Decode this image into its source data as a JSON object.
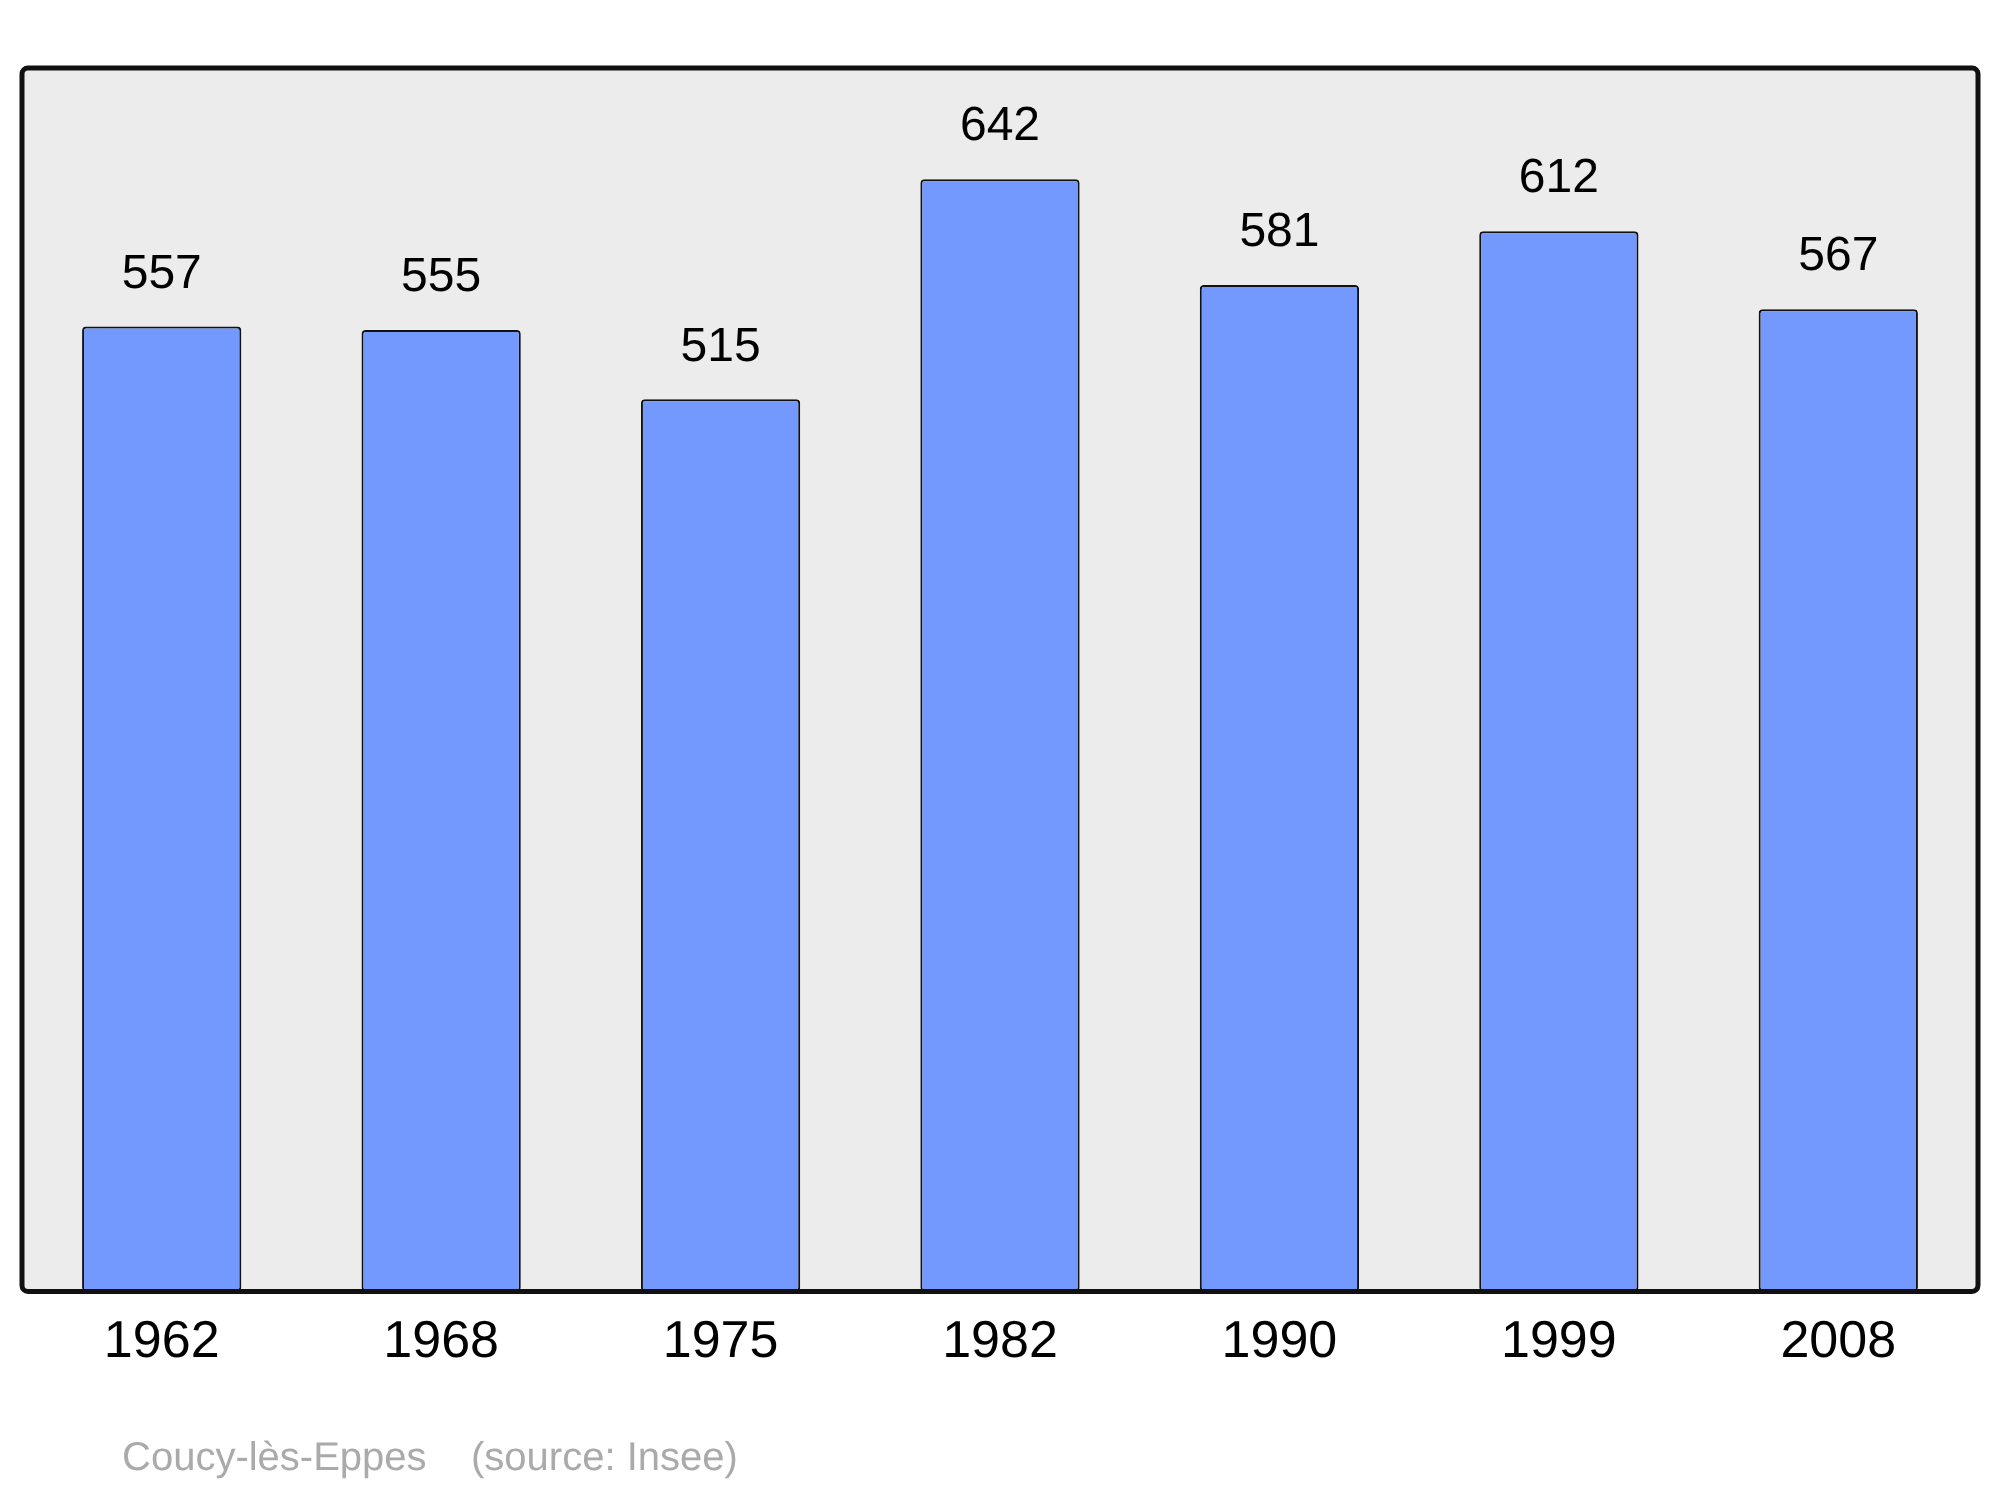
{
  "chart_data": {
    "type": "bar",
    "categories": [
      "1962",
      "1968",
      "1975",
      "1982",
      "1990",
      "1999",
      "2008"
    ],
    "values": [
      557,
      555,
      515,
      642,
      581,
      612,
      567
    ],
    "color": "#7399ff",
    "data_labels": true,
    "tick_labels": "x",
    "annotations": [
      "Coucy-lès-Eppes    (source: Insee)"
    ]
  }
}
